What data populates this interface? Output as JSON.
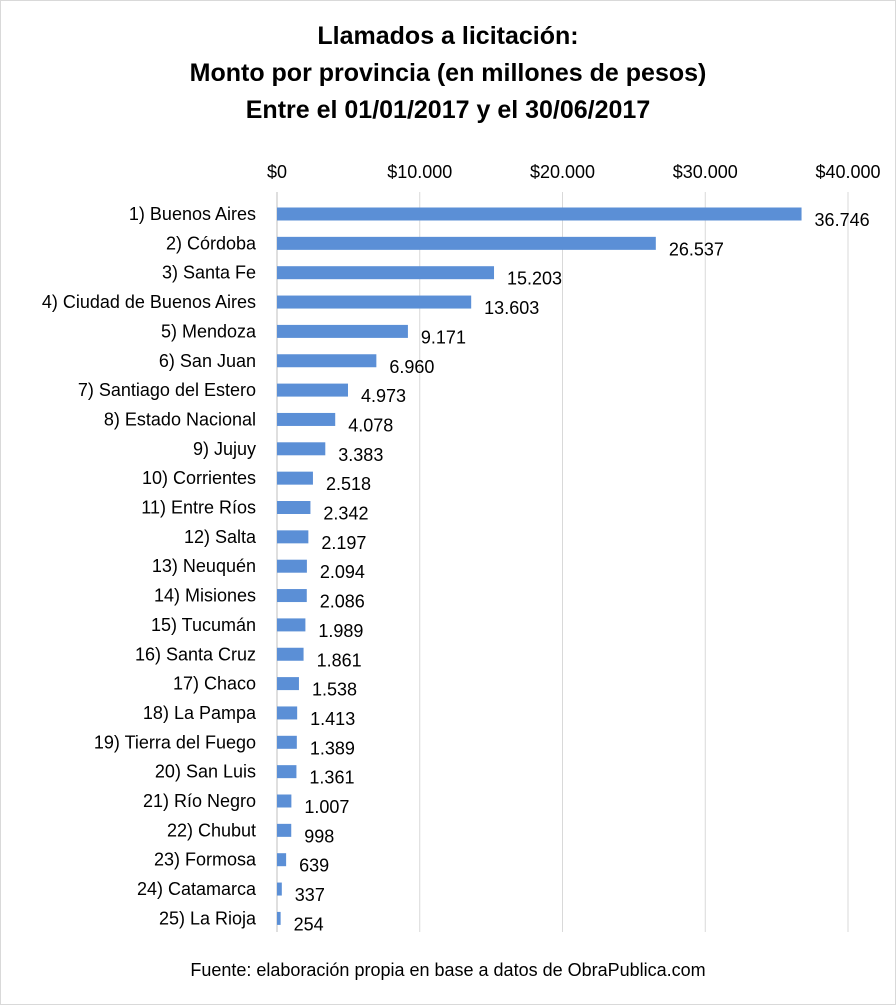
{
  "chart_data": {
    "type": "bar",
    "orientation": "horizontal",
    "title_lines": [
      "Llamados a licitación:",
      "Monto por provincia (en millones de pesos)",
      "Entre el 01/01/2017 y el 30/06/2017"
    ],
    "xlim": [
      0,
      40000
    ],
    "x_ticks": [
      0,
      10000,
      20000,
      30000,
      40000
    ],
    "x_tick_labels": [
      "$0",
      "$10.000",
      "$20.000",
      "$30.000",
      "$40.000"
    ],
    "x_axis_position": "top",
    "grid": true,
    "bar_color": "#5b8fd6",
    "categories": [
      "1) Buenos Aires",
      "2) Córdoba",
      "3) Santa Fe",
      "4) Ciudad de Buenos Aires",
      "5) Mendoza",
      "6) San Juan",
      "7) Santiago del Estero",
      "8) Estado Nacional",
      "9) Jujuy",
      "10) Corrientes",
      "11) Entre Ríos",
      "12) Salta",
      "13) Neuquén",
      "14) Misiones",
      "15) Tucumán",
      "16) Santa Cruz",
      "17) Chaco",
      "18) La Pampa",
      "19) Tierra del Fuego",
      "20) San Luis",
      "21) Río Negro",
      "22) Chubut",
      "23) Formosa",
      "24) Catamarca",
      "25) La Rioja"
    ],
    "values": [
      36746,
      26537,
      15203,
      13603,
      9171,
      6960,
      4973,
      4078,
      3383,
      2518,
      2342,
      2197,
      2094,
      2086,
      1989,
      1861,
      1538,
      1413,
      1389,
      1361,
      1007,
      998,
      639,
      337,
      254
    ],
    "value_labels": [
      "36.746",
      "26.537",
      "15.203",
      "13.603",
      "9.171",
      "6.960",
      "4.973",
      "4.078",
      "3.383",
      "2.518",
      "2.342",
      "2.197",
      "2.094",
      "2.086",
      "1.989",
      "1.861",
      "1.538",
      "1.413",
      "1.389",
      "1.361",
      "1.007",
      "998",
      "639",
      "337",
      "254"
    ]
  },
  "footer": "Fuente: elaboración propia en base a datos de ObraPublica.com"
}
